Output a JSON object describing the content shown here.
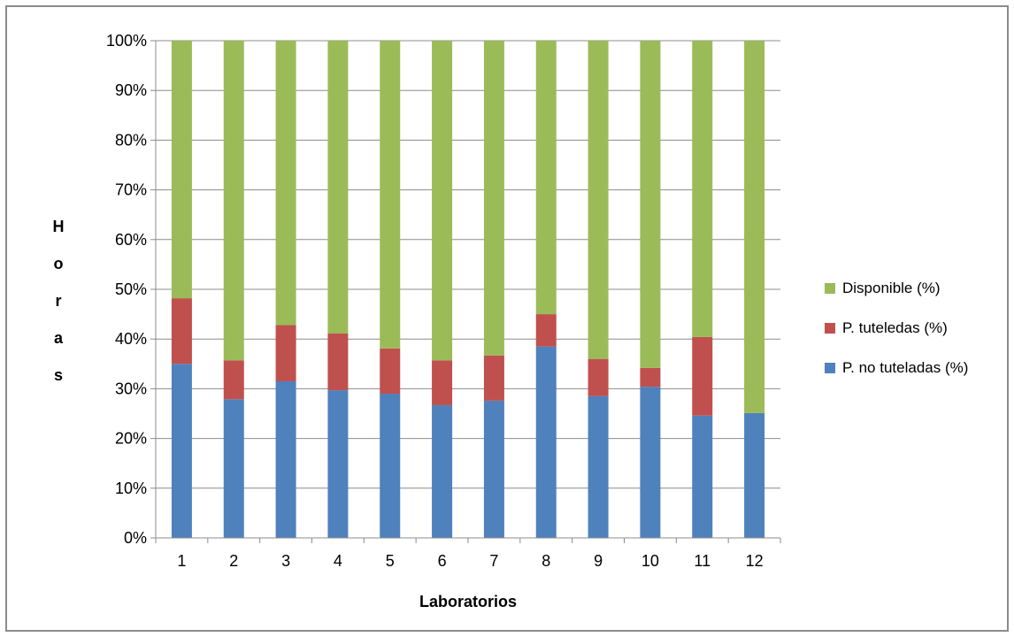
{
  "chart_data": {
    "type": "bar",
    "stacked": true,
    "xlabel": "Laboratorios",
    "ylabel": "Horas",
    "ylim": [
      0,
      100
    ],
    "y_ticks": [
      "0%",
      "10%",
      "20%",
      "30%",
      "40%",
      "50%",
      "60%",
      "70%",
      "80%",
      "90%",
      "100%"
    ],
    "categories": [
      "1",
      "2",
      "3",
      "4",
      "5",
      "6",
      "7",
      "8",
      "9",
      "10",
      "11",
      "12"
    ],
    "series": [
      {
        "name": "P. no tuteladas (%)",
        "color": "#4f81bd",
        "values": [
          35.0,
          27.9,
          31.5,
          29.7,
          29.0,
          26.7,
          27.6,
          38.5,
          28.5,
          30.4,
          24.6,
          25.1
        ]
      },
      {
        "name": "P. tuteledas (%)",
        "color": "#c0504d",
        "values": [
          13.2,
          7.8,
          11.3,
          11.4,
          9.1,
          9.0,
          9.1,
          6.5,
          7.5,
          3.8,
          15.8,
          0
        ]
      },
      {
        "name": "Disponible (%)",
        "color": "#9bbb59",
        "values": [
          51.8,
          64.3,
          57.2,
          58.9,
          61.9,
          64.3,
          63.3,
          55.0,
          64.0,
          65.8,
          59.6,
          74.9
        ]
      }
    ],
    "grid": true,
    "legend_position": "right"
  }
}
